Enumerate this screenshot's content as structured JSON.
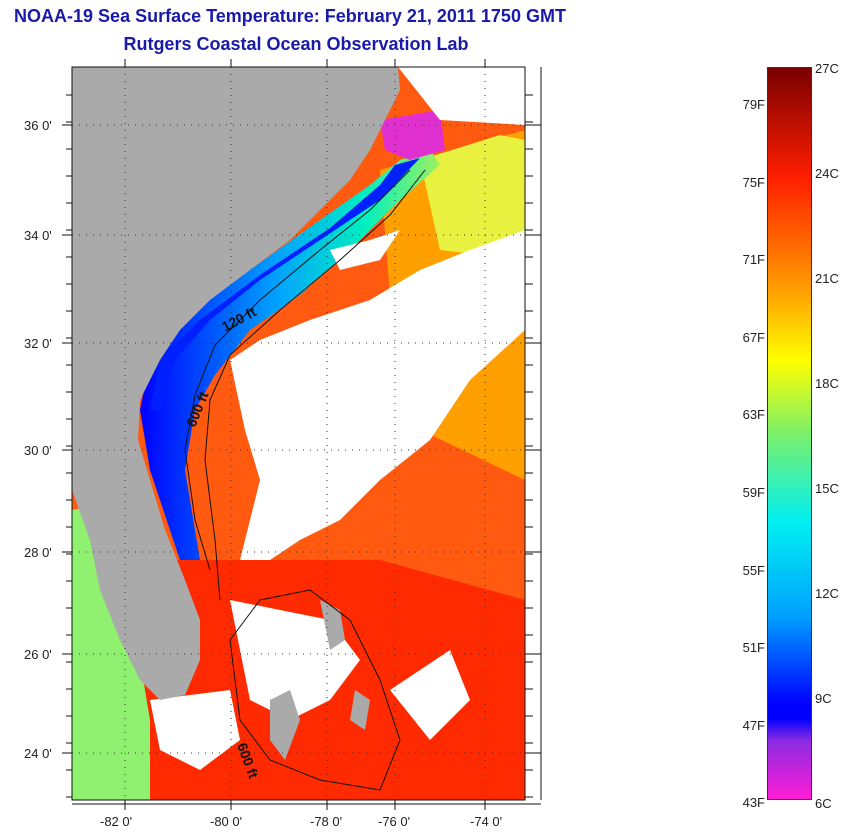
{
  "title": "NOAA-19 Sea Surface Temperature:  February 21, 2011 1750 GMT",
  "subtitle": "Rutgers Coastal Ocean Observation Lab",
  "lat_labels": [
    "36 0'",
    "34 0'",
    "32 0'",
    "30 0'",
    "28 0'",
    "26 0'",
    "24 0'"
  ],
  "lon_labels": [
    "-82 0'",
    "-80 0'",
    "-78 0'",
    "-76 0'",
    "-74 0'"
  ],
  "map": {
    "lon_range": [
      -83,
      -73
    ],
    "lat_range": [
      23,
      37.1
    ],
    "isobath_labels": [
      "120 ft",
      "600 ft",
      "600 ft"
    ]
  },
  "colorbar": {
    "fahrenheit": [
      "79F",
      "75F",
      "71F",
      "67F",
      "63F",
      "59F",
      "55F",
      "51F",
      "47F",
      "43F"
    ],
    "celsius": [
      "27C",
      "24C",
      "21C",
      "18C",
      "15C",
      "12C",
      "9C",
      "6C"
    ],
    "range_c": [
      6,
      27
    ],
    "colors": {
      "pink": "#ff1ed6",
      "purple": "#8a2be2",
      "blue": "#0000ff",
      "light_blue": "#00a0ff",
      "cyan": "#00f0f0",
      "green": "#7cf06a",
      "yellow": "#ffff00",
      "orange": "#ff9a00",
      "red": "#ff1e00",
      "dark_red": "#7a0000"
    }
  },
  "colors": {
    "land": "#aaaaaa",
    "cloud": "#ffffff",
    "title": "#1a1aa8",
    "ocean_warm": "#ff4a10"
  }
}
